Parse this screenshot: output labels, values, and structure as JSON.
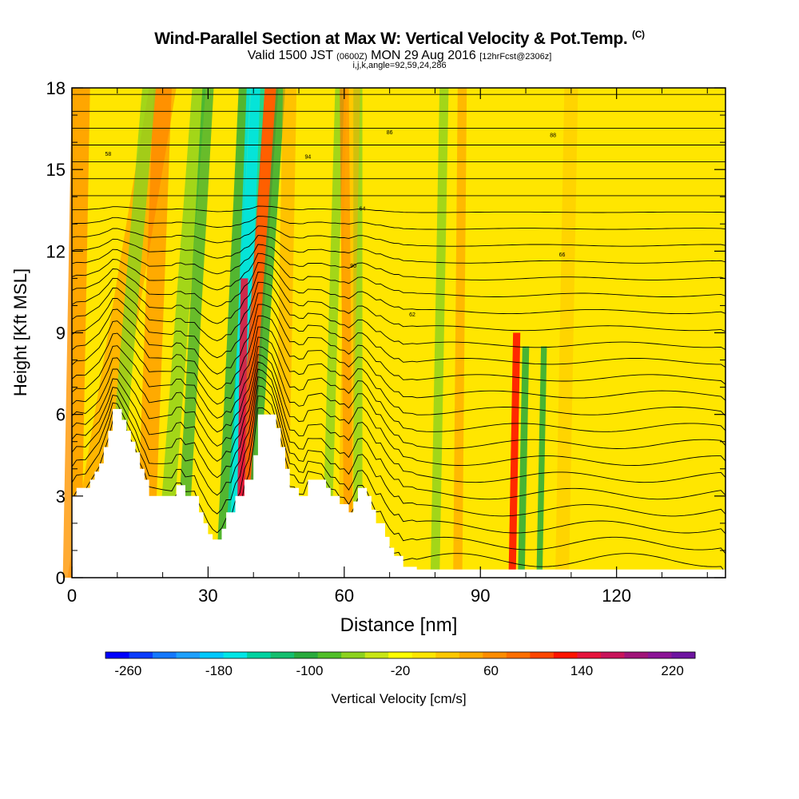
{
  "title": {
    "main": "Wind-Parallel Section at Max W: Vertical Velocity & Pot.Temp.",
    "copyright": "(C)",
    "valid_prefix": "Valid 1500 JST",
    "valid_utc": "(0600Z)",
    "valid_date": "MON 29 Aug 2016",
    "forecast": "[12hrFcst@2306z]",
    "params": "i,j,k,angle=92,59,24,286"
  },
  "chart_data": {
    "type": "heatmap",
    "xlabel": "Distance [nm]",
    "ylabel": "Height [Kft MSL]",
    "xlim": [
      0,
      144
    ],
    "ylim": [
      0,
      18
    ],
    "x_ticks": [
      0,
      30,
      60,
      90,
      120
    ],
    "y_ticks": [
      0,
      3,
      6,
      9,
      12,
      15,
      18
    ],
    "colorbar": {
      "label": "Vertical Velocity [cm/s]",
      "tick_labels": [
        -260,
        -180,
        -100,
        -20,
        60,
        140,
        220
      ],
      "colors": [
        "#0000ff",
        "#0a3cff",
        "#1478ff",
        "#1ea0ff",
        "#00c8ff",
        "#00e6e6",
        "#00d2a0",
        "#14be6e",
        "#28aa3c",
        "#50be28",
        "#8cd21e",
        "#c8e614",
        "#ffff00",
        "#ffe600",
        "#ffc800",
        "#ffaa00",
        "#ff8c00",
        "#ff6e00",
        "#ff4600",
        "#ff1400",
        "#e6143c",
        "#c8145a",
        "#a01478",
        "#8c1496",
        "#6e14a0"
      ]
    },
    "terrain_profile": [
      [
        0,
        3
      ],
      [
        1,
        3
      ],
      [
        1,
        3.3
      ],
      [
        4,
        3.3
      ],
      [
        4,
        3.6
      ],
      [
        5,
        3.6
      ],
      [
        5,
        3.9
      ],
      [
        6,
        3.9
      ],
      [
        6,
        4.2
      ],
      [
        7,
        4.2
      ],
      [
        7,
        4.8
      ],
      [
        8,
        4.8
      ],
      [
        8,
        5.4
      ],
      [
        9,
        5.4
      ],
      [
        9,
        6.2
      ],
      [
        11,
        6.2
      ],
      [
        11,
        5.8
      ],
      [
        12,
        5.8
      ],
      [
        12,
        5.4
      ],
      [
        13,
        5.4
      ],
      [
        13,
        5.0
      ],
      [
        14,
        5.0
      ],
      [
        14,
        4.6
      ],
      [
        15,
        4.6
      ],
      [
        15,
        4.0
      ],
      [
        16,
        4.0
      ],
      [
        16,
        3.6
      ],
      [
        17,
        3.6
      ],
      [
        17,
        3.0
      ],
      [
        23,
        3.0
      ],
      [
        23,
        3.4
      ],
      [
        25,
        3.4
      ],
      [
        25,
        3.0
      ],
      [
        28,
        3.0
      ],
      [
        28,
        2.4
      ],
      [
        29,
        2.4
      ],
      [
        29,
        2.0
      ],
      [
        30,
        2.0
      ],
      [
        30,
        1.6
      ],
      [
        31,
        1.6
      ],
      [
        31,
        1.4
      ],
      [
        33,
        1.4
      ],
      [
        33,
        1.8
      ],
      [
        34,
        1.8
      ],
      [
        34,
        2.4
      ],
      [
        36,
        2.4
      ],
      [
        36,
        3.0
      ],
      [
        38,
        3.0
      ],
      [
        38,
        3.6
      ],
      [
        40,
        3.6
      ],
      [
        40,
        4.5
      ],
      [
        41,
        4.5
      ],
      [
        41,
        6.0
      ],
      [
        45,
        6.0
      ],
      [
        45,
        5.5
      ],
      [
        46,
        5.5
      ],
      [
        46,
        4.8
      ],
      [
        47,
        4.8
      ],
      [
        47,
        4.0
      ],
      [
        48,
        4.0
      ],
      [
        48,
        3.3
      ],
      [
        50,
        3.3
      ],
      [
        50,
        3.0
      ],
      [
        52,
        3.0
      ],
      [
        52,
        3.6
      ],
      [
        56,
        3.6
      ],
      [
        56,
        3.3
      ],
      [
        57,
        3.3
      ],
      [
        57,
        3.0
      ],
      [
        59,
        3.0
      ],
      [
        59,
        2.7
      ],
      [
        61,
        2.7
      ],
      [
        61,
        2.4
      ],
      [
        62,
        2.4
      ],
      [
        62,
        2.8
      ],
      [
        63,
        2.8
      ],
      [
        63,
        3.3
      ],
      [
        65,
        3.3
      ],
      [
        65,
        3.0
      ],
      [
        66,
        3.0
      ],
      [
        66,
        2.5
      ],
      [
        67,
        2.5
      ],
      [
        67,
        2.0
      ],
      [
        69,
        2.0
      ],
      [
        69,
        1.5
      ],
      [
        70,
        1.5
      ],
      [
        70,
        1.1
      ],
      [
        71,
        1.1
      ],
      [
        71,
        0.8
      ],
      [
        73,
        0.8
      ],
      [
        73,
        0.4
      ],
      [
        76,
        0.4
      ],
      [
        76,
        0.3
      ],
      [
        144,
        0.3
      ],
      [
        144,
        0
      ]
    ],
    "theta_contour_labels": [
      "58",
      "86",
      "88",
      "94",
      "90",
      "64",
      "66",
      "62"
    ]
  }
}
